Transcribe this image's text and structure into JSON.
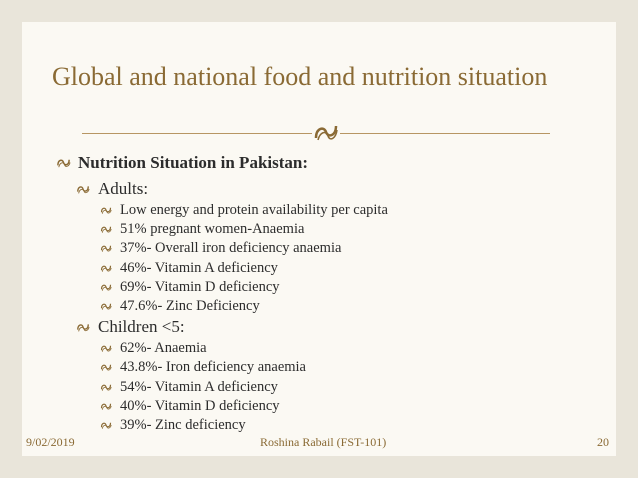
{
  "slide": {
    "title": "Global and national food and nutrition situation",
    "heading": "Nutrition Situation in Pakistan:",
    "groups": [
      {
        "label": "Adults:",
        "items": [
          "Low energy and protein availability per capita",
          "51% pregnant women-Anaemia",
          "37%- Overall iron deficiency anaemia",
          "46%- Vitamin A deficiency",
          "69%- Vitamin D deficiency",
          "47.6%- Zinc Deficiency"
        ]
      },
      {
        "label": "Children <5:",
        "items": [
          "62%- Anaemia",
          "43.8%- Iron deficiency anaemia",
          "54%- Vitamin A deficiency",
          "40%- Vitamin D deficiency",
          "39%- Zinc deficiency"
        ]
      }
    ]
  },
  "footer": {
    "date": "9/02/2019",
    "author": "Roshina Rabail (FST-101)",
    "page": "20"
  },
  "colors": {
    "accent": "#8a6a34",
    "text": "#2c2c2c",
    "background": "#fbf9f3"
  },
  "icons": {
    "bullet": "curl-bullet-icon",
    "divider": "scroll-ornament-icon"
  }
}
